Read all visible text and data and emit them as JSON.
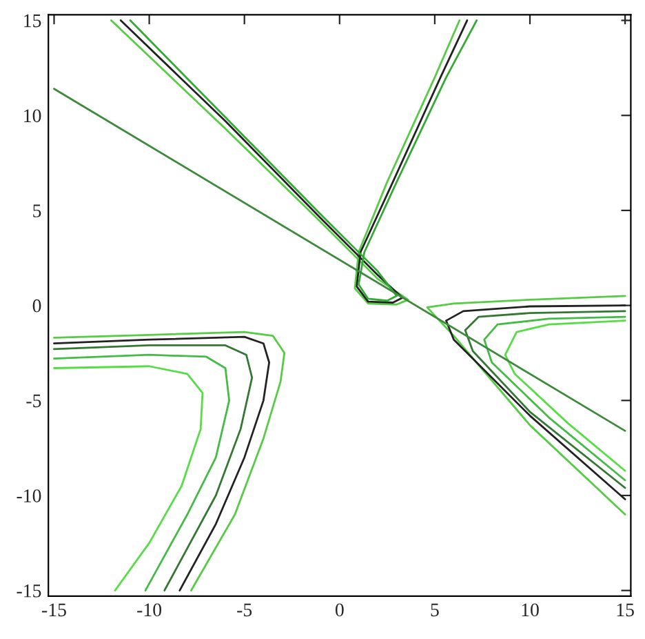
{
  "chart_data": {
    "type": "line",
    "xlim": [
      -15.3,
      15.3
    ],
    "ylim": [
      -15.3,
      15.3
    ],
    "xticks": [
      -15,
      -10,
      -5,
      0,
      5,
      10,
      15
    ],
    "yticks": [
      -15,
      -10,
      -5,
      0,
      5,
      10,
      15
    ],
    "grid": false,
    "marker": "none",
    "line_style": "solid",
    "series": [
      {
        "color": "#55cc44",
        "x": [
          -15,
          -10,
          -5,
          -3.5,
          -2.9,
          -3.1,
          -4,
          -5.5,
          -7.8
        ],
        "values": [
          -1.7,
          -1.55,
          -1.4,
          -1.6,
          -2.5,
          -4,
          -7,
          -11,
          -15
        ]
      },
      {
        "color": "#222222",
        "x": [
          -15,
          -10,
          -5,
          -4,
          -3.7,
          -4,
          -5,
          -6.5,
          -8.4
        ],
        "values": [
          -2.0,
          -1.8,
          -1.65,
          -2.0,
          -3,
          -5,
          -8,
          -11.5,
          -15
        ]
      },
      {
        "color": "#337733",
        "x": [
          -15,
          -10,
          -6,
          -4.9,
          -4.6,
          -5.2,
          -6.5,
          -9.2
        ],
        "values": [
          -2.3,
          -2.1,
          -2.1,
          -2.6,
          -3.8,
          -6.5,
          -10,
          -15
        ]
      },
      {
        "color": "#44bb44",
        "x": [
          -15,
          -10,
          -7,
          -6,
          -5.8,
          -6.5,
          -8,
          -10.2
        ],
        "values": [
          -2.8,
          -2.6,
          -2.7,
          -3.3,
          -5,
          -8,
          -11,
          -15
        ]
      },
      {
        "color": "#55dd44",
        "x": [
          -15,
          -10,
          -8,
          -7.2,
          -7.3,
          -8.3,
          -10,
          -11.8
        ],
        "values": [
          -3.3,
          -3.2,
          -3.6,
          -4.6,
          -6.5,
          -9.5,
          -12.5,
          -15
        ]
      },
      {
        "color": "#55cc44",
        "x": [
          15,
          10,
          6,
          4.6,
          6,
          10,
          15
        ],
        "values": [
          0.5,
          0.3,
          0.1,
          -0.1,
          -1.6,
          -6.3,
          -11.0
        ]
      },
      {
        "color": "#222222",
        "x": [
          15,
          10,
          6.5,
          5.6,
          6,
          10,
          15
        ],
        "values": [
          0.0,
          -0.05,
          -0.3,
          -0.8,
          -1.8,
          -5.8,
          -10.2
        ]
      },
      {
        "color": "#337733",
        "x": [
          15,
          10,
          7.3,
          6.6,
          7,
          10,
          15
        ],
        "values": [
          -0.3,
          -0.4,
          -0.6,
          -1.3,
          -2.4,
          -5.6,
          -9.6
        ]
      },
      {
        "color": "#44bb44",
        "x": [
          15,
          11,
          8.3,
          7.6,
          8,
          11,
          15
        ],
        "values": [
          -0.6,
          -0.7,
          -1.0,
          -1.8,
          -3,
          -5.9,
          -9.2
        ]
      },
      {
        "color": "#55dd44",
        "x": [
          15,
          11,
          9.3,
          8.7,
          9.2,
          12,
          15
        ],
        "values": [
          -0.8,
          -1.0,
          -1.4,
          -2.6,
          -3.6,
          -6.2,
          -8.7
        ]
      },
      {
        "color": "#55cc44",
        "x": [
          -12,
          -6,
          -1,
          2,
          3.6,
          3,
          1.5,
          0.8,
          1.0,
          2.5,
          5,
          6.3
        ],
        "values": [
          15,
          9.3,
          4.4,
          1.4,
          0.3,
          0.05,
          0.1,
          0.9,
          2.8,
          6.5,
          12,
          15
        ]
      },
      {
        "color": "#222222",
        "x": [
          -11.5,
          -6,
          -1,
          2,
          3.3,
          2.8,
          1.5,
          0.9,
          1.1,
          2.8,
          5.3,
          6.7
        ],
        "values": [
          15,
          9.7,
          4.6,
          1.6,
          0.4,
          0.15,
          0.2,
          1.0,
          2.8,
          6.5,
          12,
          15
        ]
      },
      {
        "color": "#33aa33",
        "x": [
          -11,
          -6,
          -1,
          2,
          3.0,
          2.5,
          1.5,
          1.0,
          1.3,
          3.0,
          5.6,
          7.2
        ],
        "values": [
          15,
          9.9,
          4.8,
          1.8,
          0.5,
          0.25,
          0.35,
          1.1,
          2.8,
          6.5,
          12,
          15
        ]
      },
      {
        "color": "#3d8a3d",
        "x": [
          -15,
          15
        ],
        "values": [
          11.4,
          -6.6
        ]
      }
    ]
  }
}
